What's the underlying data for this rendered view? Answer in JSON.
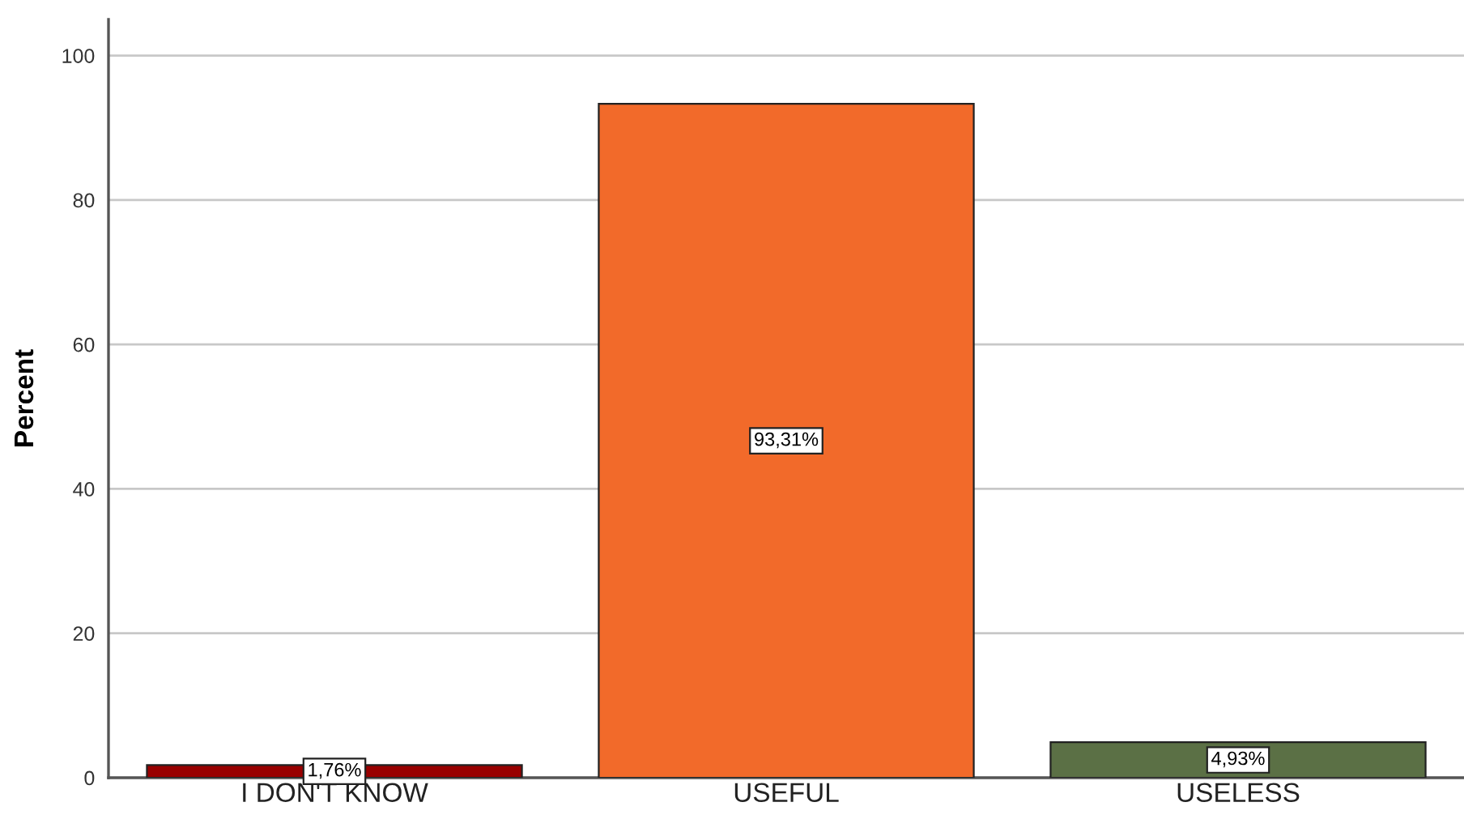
{
  "chart_data": {
    "type": "bar",
    "ylabel": "Percent",
    "categories": [
      "I DON'T KNOW",
      "USEFUL",
      "USELESS"
    ],
    "values": [
      1.76,
      93.31,
      4.93
    ],
    "colors": [
      "#990000",
      "#f26a2a",
      "#5b7045"
    ],
    "value_labels": [
      "1,76%",
      "93,31%",
      "4,93%"
    ],
    "ylim": [
      0,
      105
    ],
    "yticks": [
      0,
      20,
      40,
      60,
      80,
      100
    ],
    "grid": "y",
    "legend": false
  }
}
